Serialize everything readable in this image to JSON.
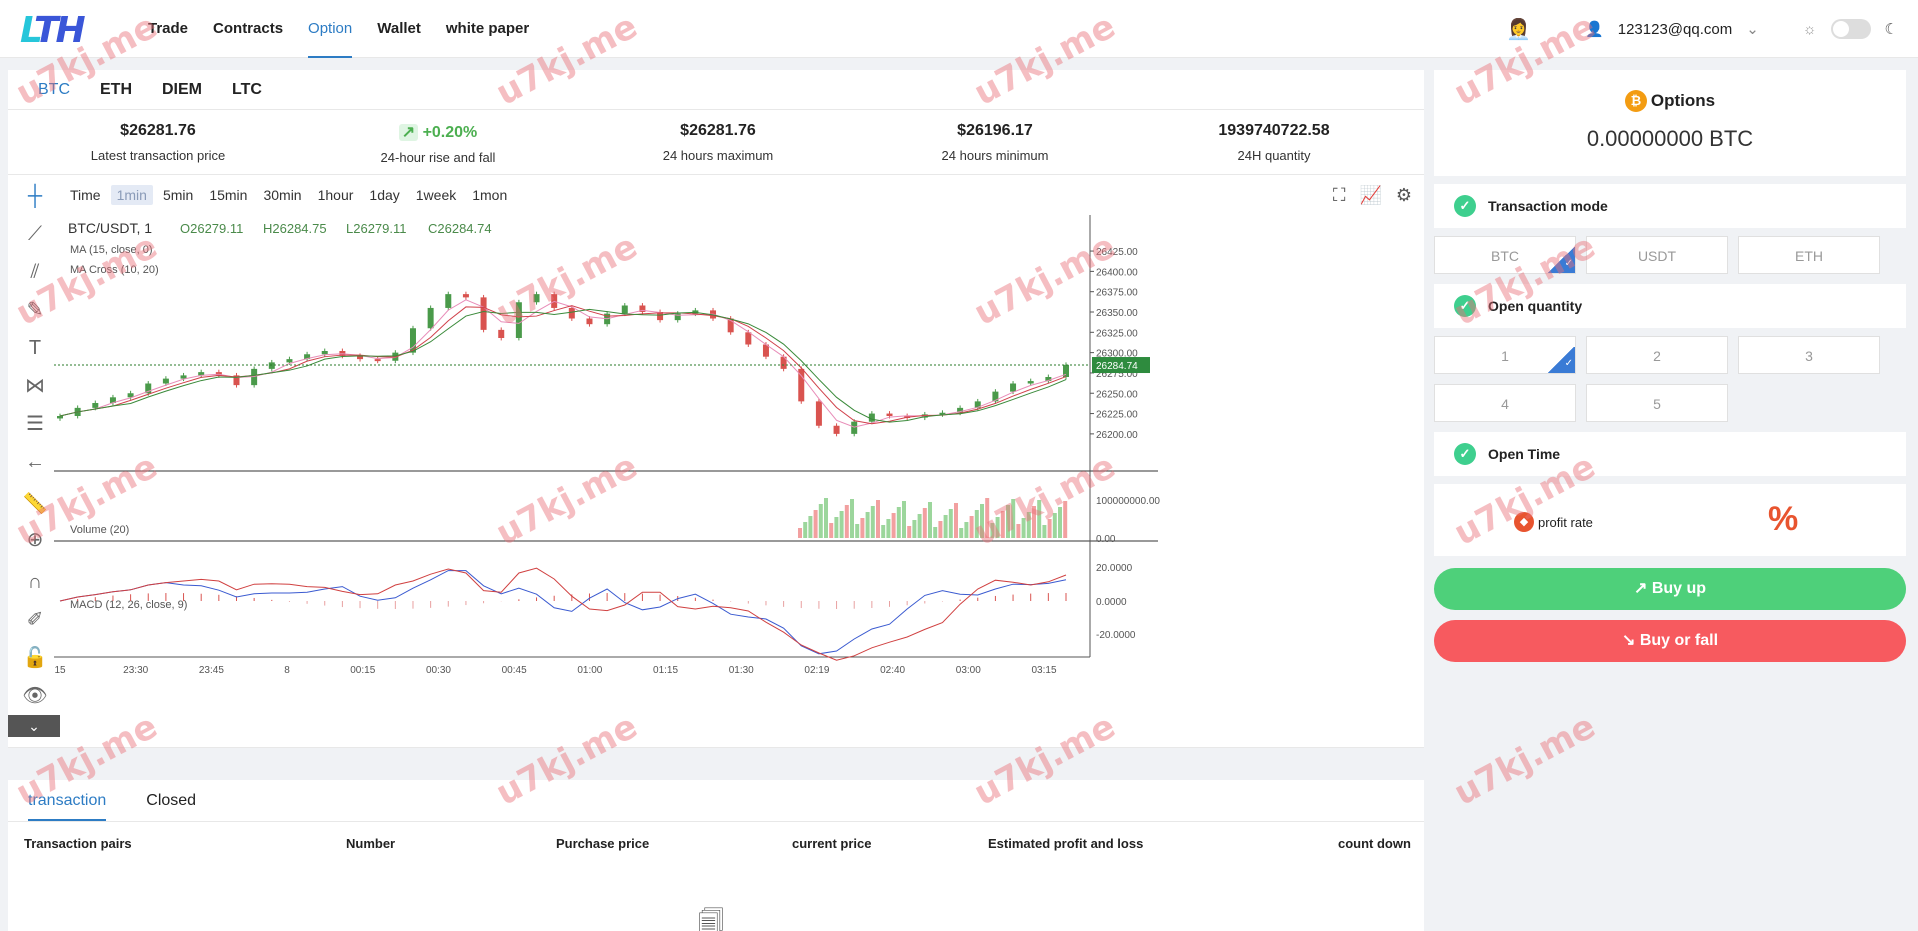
{
  "header": {
    "logo": "LTH",
    "nav": [
      "Trade",
      "Contracts",
      "Option",
      "Wallet",
      "white paper"
    ],
    "active_nav": "Option",
    "user_email": "123123@qq.com"
  },
  "coins": [
    "BTC",
    "ETH",
    "DIEM",
    "LTC"
  ],
  "active_coin": "BTC",
  "stats": [
    {
      "value": "$26281.76",
      "label": "Latest transaction price"
    },
    {
      "value": "+0.20%",
      "label": "24-hour rise and fall"
    },
    {
      "value": "$26281.76",
      "label": "24 hours maximum"
    },
    {
      "value": "$26196.17",
      "label": "24 hours minimum"
    },
    {
      "value": "1939740722.58",
      "label": "24H quantity"
    }
  ],
  "timeframes": [
    "Time",
    "1min",
    "5min",
    "15min",
    "30min",
    "1hour",
    "1day",
    "1week",
    "1mon"
  ],
  "active_timeframe": "1min",
  "chart": {
    "symbol": "BTC/USDT, 1",
    "ohlc": {
      "o": "O26279.11",
      "h": "H26284.75",
      "l": "L26279.11",
      "c": "C26284.74"
    },
    "ma_label": "MA (15, close, 0)",
    "ma_cross_label": "MA Cross (10, 20)",
    "volume_label": "Volume (20)",
    "macd_label": "MACD (12, 26, close, 9)",
    "current_price": "26284.74",
    "price_ticks": [
      "26425.00",
      "26400.00",
      "26375.00",
      "26350.00",
      "26325.00",
      "26300.00",
      "26275.00",
      "26250.00",
      "26225.00",
      "26200.00"
    ],
    "volume_ticks": [
      "100000000.00",
      "0.00"
    ],
    "macd_ticks": [
      "20.0000",
      "0.0000",
      "-20.0000"
    ],
    "time_ticks": [
      "15",
      "23:30",
      "23:45",
      "8",
      "00:15",
      "00:30",
      "00:45",
      "01:00",
      "01:15",
      "01:30",
      "02:19",
      "02:40",
      "03:00",
      "03:15"
    ]
  },
  "chart_data": {
    "type": "candlestick",
    "price_range": [
      26190,
      26430
    ],
    "price_series": [
      26222,
      26232,
      26238,
      26245,
      26250,
      26262,
      26268,
      26272,
      26276,
      26272,
      26260,
      26280,
      26288,
      26292,
      26298,
      26302,
      26296,
      26292,
      26290,
      26300,
      26330,
      26355,
      26372,
      26368,
      26328,
      26318,
      26362,
      26372,
      26355,
      26342,
      26335,
      26348,
      26358,
      26350,
      26340,
      26348,
      26352,
      26342,
      26325,
      26310,
      26295,
      26280,
      26240,
      26210,
      26200,
      26215,
      26225,
      26222,
      26220,
      26224,
      26226,
      26232,
      26240,
      26252,
      26262,
      26265,
      26270,
      26285
    ]
  },
  "bottom": {
    "tabs": [
      "transaction",
      "Closed"
    ],
    "active_tab": "transaction",
    "columns": [
      "Transaction pairs",
      "Number",
      "Purchase price",
      "current price",
      "Estimated profit and loss",
      "count down"
    ]
  },
  "options": {
    "title": "Options",
    "balance": "0.00000000 BTC",
    "transaction_mode_label": "Transaction mode",
    "modes": [
      "BTC",
      "USDT",
      "ETH"
    ],
    "open_quantity_label": "Open quantity",
    "quantities": [
      "1",
      "2",
      "3",
      "4",
      "5"
    ],
    "open_time_label": "Open Time",
    "profit_rate_label": "profit rate",
    "profit_rate_value": "%",
    "buy_up": "Buy up",
    "buy_fall": "Buy or fall"
  },
  "watermark": "u7kj.me"
}
